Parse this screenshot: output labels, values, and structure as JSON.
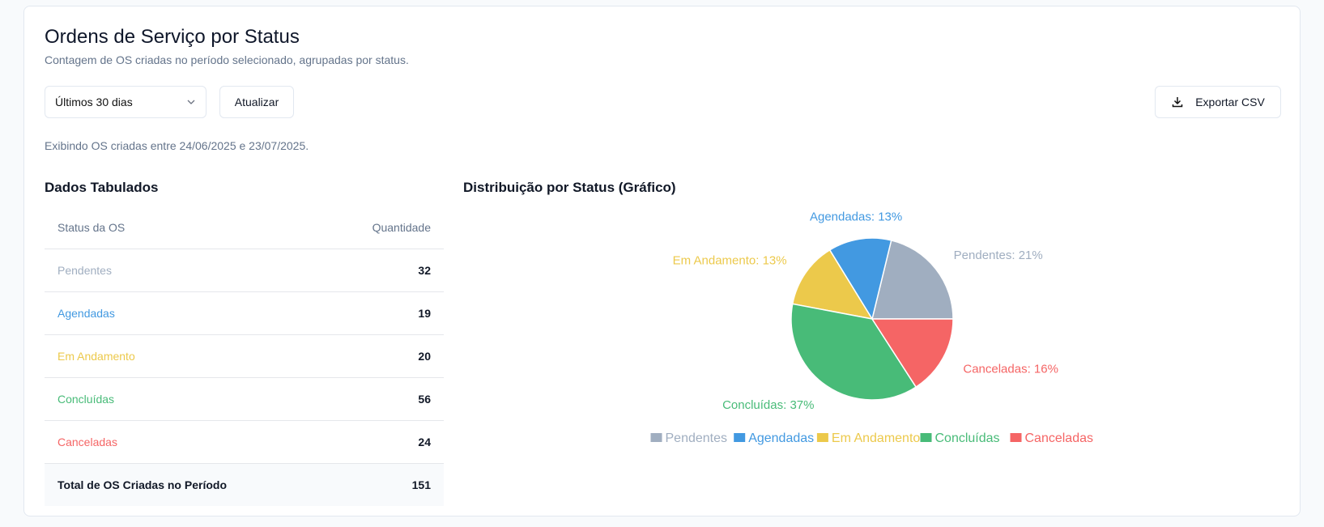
{
  "header": {
    "title": "Ordens de Serviço por Status",
    "subtitle": "Contagem de OS criadas no período selecionado, agrupadas por status."
  },
  "toolbar": {
    "period_value": "Últimos 30 dias",
    "refresh_label": "Atualizar",
    "export_label": "Exportar CSV",
    "export_icon": "download-icon",
    "select_icon": "chevron-down-icon"
  },
  "range_text": "Exibindo OS criadas entre 24/06/2025 e 23/07/2025.",
  "table": {
    "title": "Dados Tabulados",
    "headers": [
      "Status da OS",
      "Quantidade"
    ],
    "rows": [
      {
        "status": "Pendentes",
        "qty": "32"
      },
      {
        "status": "Agendadas",
        "qty": "19"
      },
      {
        "status": "Em Andamento",
        "qty": "20"
      },
      {
        "status": "Concluídas",
        "qty": "56"
      },
      {
        "status": "Canceladas",
        "qty": "24"
      }
    ],
    "total_label": "Total de OS Criadas no Período",
    "total": "151"
  },
  "chart_data": {
    "type": "pie",
    "title": "Distribuição por Status (Gráfico)",
    "categories": [
      "Pendentes",
      "Agendadas",
      "Em Andamento",
      "Concluídas",
      "Canceladas"
    ],
    "values": [
      32,
      19,
      20,
      56,
      24
    ],
    "labels": [
      "Pendentes: 21%",
      "Agendadas: 13%",
      "Em Andamento: 13%",
      "Concluídas: 37%",
      "Canceladas: 16%"
    ],
    "colors": [
      "#a0aec0",
      "#4299e1",
      "#ecc94b",
      "#48bb78",
      "#f56565"
    ],
    "legend": "bottom"
  }
}
